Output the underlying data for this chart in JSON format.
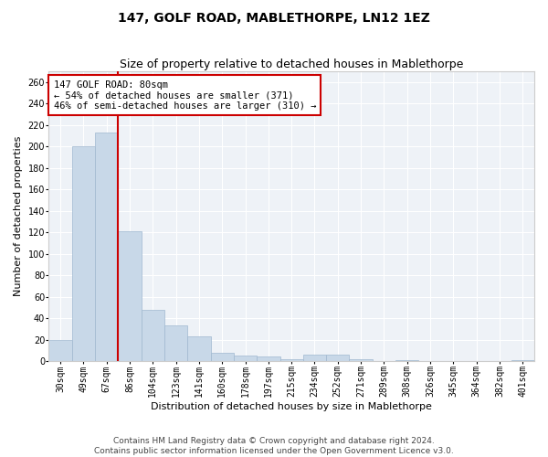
{
  "title": "147, GOLF ROAD, MABLETHORPE, LN12 1EZ",
  "subtitle": "Size of property relative to detached houses in Mablethorpe",
  "xlabel": "Distribution of detached houses by size in Mablethorpe",
  "ylabel": "Number of detached properties",
  "categories": [
    "30sqm",
    "49sqm",
    "67sqm",
    "86sqm",
    "104sqm",
    "123sqm",
    "141sqm",
    "160sqm",
    "178sqm",
    "197sqm",
    "215sqm",
    "234sqm",
    "252sqm",
    "271sqm",
    "289sqm",
    "308sqm",
    "326sqm",
    "345sqm",
    "364sqm",
    "382sqm",
    "401sqm"
  ],
  "values": [
    20,
    200,
    213,
    121,
    48,
    33,
    23,
    8,
    5,
    4,
    2,
    6,
    6,
    2,
    0,
    1,
    0,
    0,
    0,
    0,
    1
  ],
  "bar_color": "#c8d8e8",
  "bar_edge_color": "#a0b8d0",
  "vline_x": 2.5,
  "vline_color": "#cc0000",
  "annotation_line1": "147 GOLF ROAD: 80sqm",
  "annotation_line2": "← 54% of detached houses are smaller (371)",
  "annotation_line3": "46% of semi-detached houses are larger (310) →",
  "annotation_box_color": "white",
  "annotation_box_edge": "#cc0000",
  "ylim": [
    0,
    270
  ],
  "yticks": [
    0,
    20,
    40,
    60,
    80,
    100,
    120,
    140,
    160,
    180,
    200,
    220,
    240,
    260
  ],
  "footer": "Contains HM Land Registry data © Crown copyright and database right 2024.\nContains public sector information licensed under the Open Government Licence v3.0.",
  "bg_color": "#eef2f7",
  "grid_color": "white",
  "title_fontsize": 10,
  "subtitle_fontsize": 9,
  "axis_label_fontsize": 8,
  "tick_fontsize": 7,
  "footer_fontsize": 6.5,
  "annotation_fontsize": 7.5
}
